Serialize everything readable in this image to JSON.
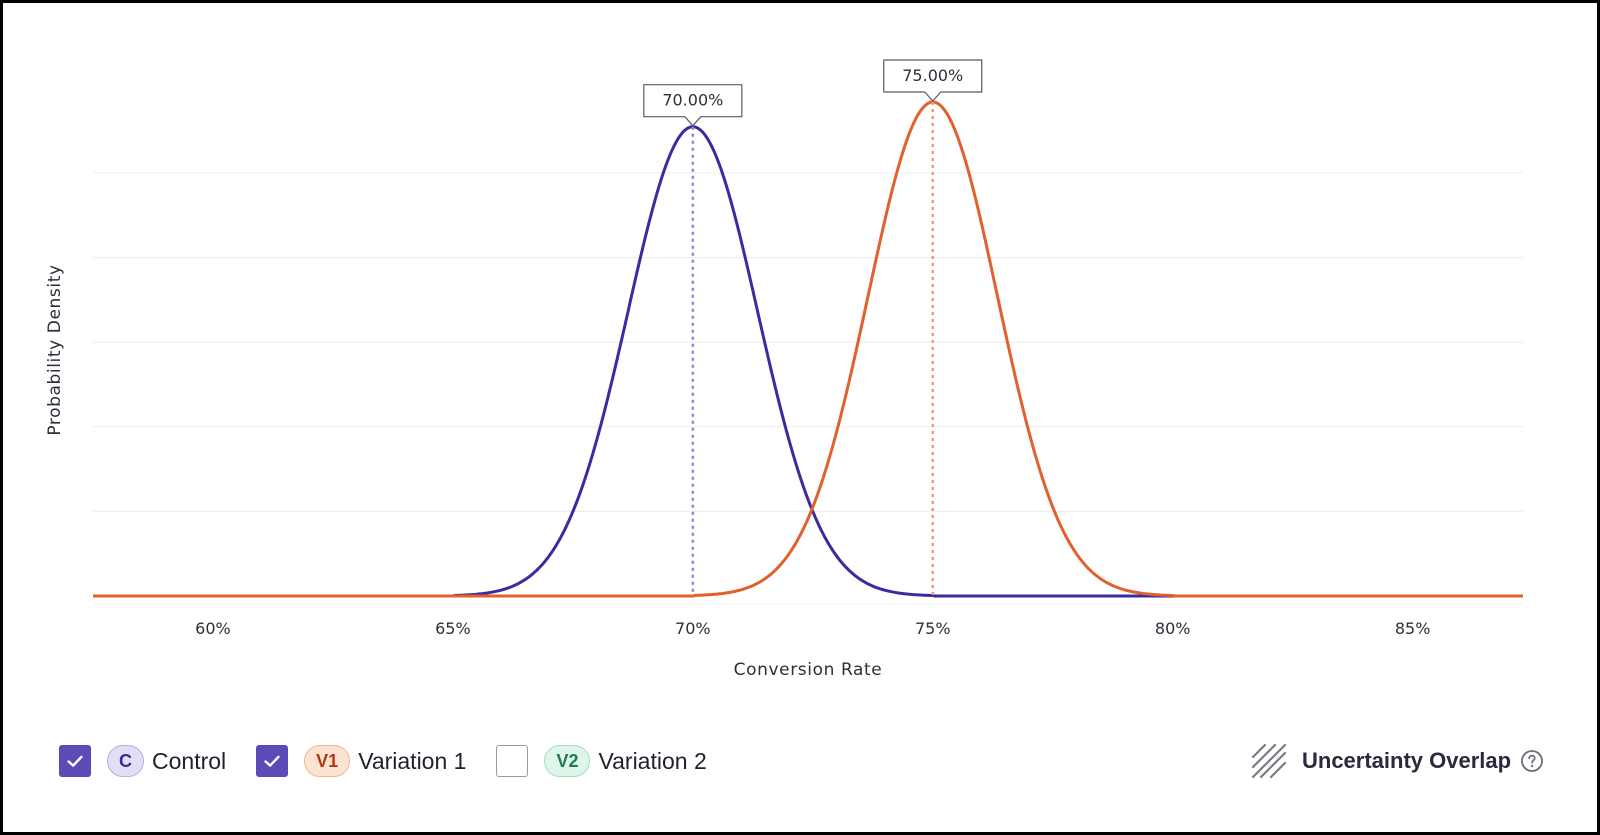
{
  "colors": {
    "control": "#3a2ba0",
    "variation1": "#e0612b",
    "control_marker": "#8f86d8",
    "variation1_marker": "#f09a78",
    "grid": "#ececf0",
    "checkbox_checked": "#5b4bb7"
  },
  "chart_data": {
    "type": "area",
    "xlabel": "Conversion Rate",
    "ylabel": "Probability Density",
    "xlim": [
      57.5,
      87.3
    ],
    "x_ticks": [
      60,
      65,
      70,
      75,
      80,
      85
    ],
    "x_tick_labels": [
      "60%",
      "65%",
      "70%",
      "75%",
      "80%",
      "85%"
    ],
    "grid": "horizontal",
    "series": [
      {
        "name": "Control",
        "mean": 70.0,
        "std": 1.35,
        "support": [
          65.0,
          75.0
        ],
        "peak_density": 0.95,
        "color": "#3a2ba0",
        "visible": true
      },
      {
        "name": "Variation 1",
        "mean": 75.0,
        "std": 1.35,
        "support": [
          70.0,
          80.0
        ],
        "peak_density": 1.0,
        "color": "#e0612b",
        "visible": true
      }
    ],
    "annotations": [
      {
        "series": "Control",
        "x": 70.0,
        "label": "70.00%"
      },
      {
        "series": "Variation 1",
        "x": 75.0,
        "label": "75.00%"
      }
    ]
  },
  "legend": {
    "items": [
      {
        "badge": "C",
        "label": "Control",
        "checked": true
      },
      {
        "badge": "V1",
        "label": "Variation 1",
        "checked": true
      },
      {
        "badge": "V2",
        "label": "Variation 2",
        "checked": false
      }
    ],
    "overlay_label": "Uncertainty Overlap",
    "overlay_icon": "hatch-icon",
    "help_icon": "question-circle-icon"
  }
}
